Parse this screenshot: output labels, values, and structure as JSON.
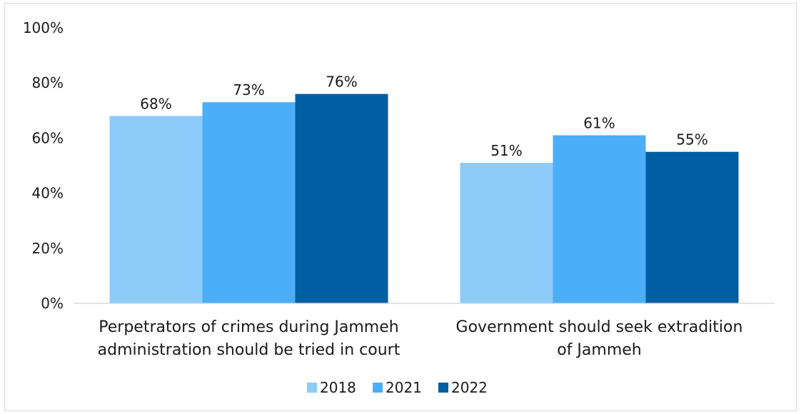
{
  "chart_data": {
    "type": "bar",
    "title": "",
    "xlabel": "",
    "ylabel": "",
    "ylim": [
      0,
      100
    ],
    "yticks": [
      "0%",
      "20%",
      "40%",
      "60%",
      "80%",
      "100%"
    ],
    "ytick_values": [
      0,
      20,
      40,
      60,
      80,
      100
    ],
    "grid": false,
    "legend_position": "bottom",
    "categories": [
      [
        "Perpetrators of crimes during Jammeh",
        "administration should be tried in court"
      ],
      [
        "Government should seek extradition",
        "of Jammeh"
      ]
    ],
    "series": [
      {
        "name": "2018",
        "values": [
          68,
          51
        ],
        "labels": [
          "68%",
          "51%"
        ],
        "color": "#8ccbfa"
      },
      {
        "name": "2021",
        "values": [
          73,
          61
        ],
        "labels": [
          "73%",
          "61%"
        ],
        "color": "#4baef8"
      },
      {
        "name": "2022",
        "values": [
          76,
          55
        ],
        "labels": [
          "76%",
          "55%"
        ],
        "color": "#005ea2"
      }
    ]
  }
}
